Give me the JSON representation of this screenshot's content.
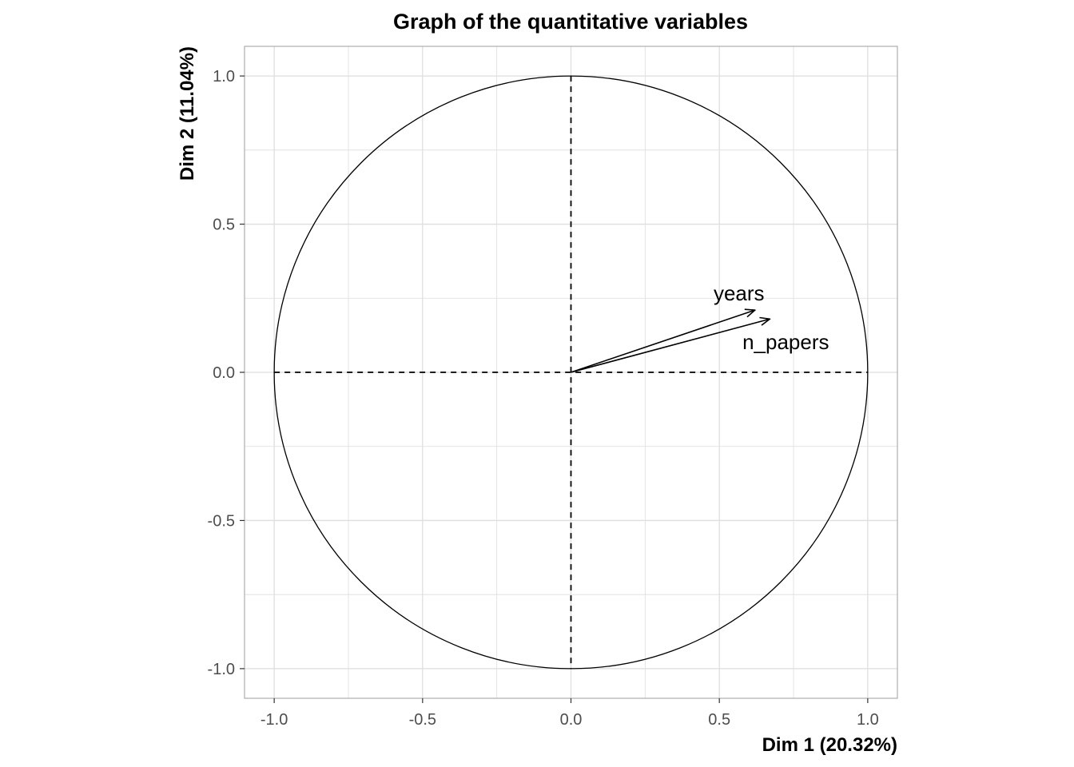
{
  "chart_data": {
    "type": "scatter",
    "title": "Graph of the quantitative variables",
    "xlabel": "Dim 1 (20.32%)",
    "ylabel": "Dim 2 (11.04%)",
    "xlim": [
      -1.1,
      1.1
    ],
    "ylim": [
      -1.1,
      1.1
    ],
    "xticks": [
      -1.0,
      -0.5,
      0.0,
      0.5,
      1.0
    ],
    "yticks": [
      -1.0,
      -0.5,
      0.0,
      0.5,
      1.0
    ],
    "xtick_labels": [
      "-1.0",
      "-0.5",
      "0.0",
      "0.5",
      "1.0"
    ],
    "ytick_labels": [
      "-1.0",
      "-0.5",
      "0.0",
      "0.5",
      "1.0"
    ],
    "grid": true,
    "unit_circle": true,
    "reference_lines": {
      "x": 0,
      "y": 0,
      "style": "dashed"
    },
    "variables": [
      {
        "name": "years",
        "x": 0.62,
        "y": 0.21
      },
      {
        "name": "n_papers",
        "x": 0.67,
        "y": 0.18
      }
    ],
    "colors": {
      "text": "#000000",
      "tick": "#4d4d4d",
      "grid": "#dedede",
      "panel_border": "#b3b3b3",
      "arrows": "#000000"
    }
  }
}
